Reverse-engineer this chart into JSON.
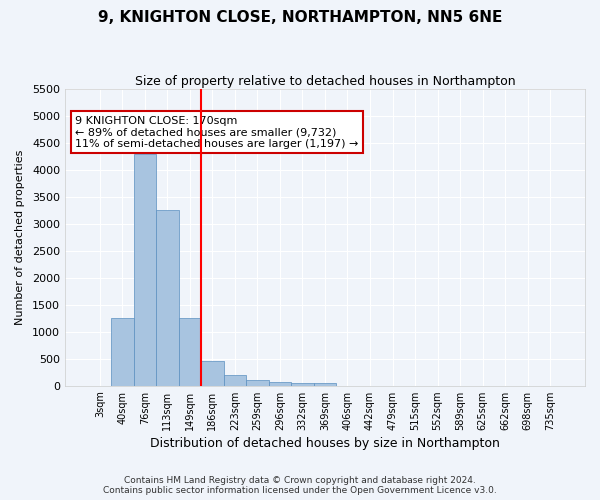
{
  "title": "9, KNIGHTON CLOSE, NORTHAMPTON, NN5 6NE",
  "subtitle": "Size of property relative to detached houses in Northampton",
  "xlabel": "Distribution of detached houses by size in Northampton",
  "ylabel": "Number of detached properties",
  "categories": [
    "3sqm",
    "40sqm",
    "76sqm",
    "113sqm",
    "149sqm",
    "186sqm",
    "223sqm",
    "259sqm",
    "296sqm",
    "332sqm",
    "369sqm",
    "406sqm",
    "442sqm",
    "479sqm",
    "515sqm",
    "552sqm",
    "589sqm",
    "625sqm",
    "662sqm",
    "698sqm",
    "735sqm"
  ],
  "values": [
    0,
    1250,
    4300,
    3250,
    1250,
    450,
    200,
    100,
    75,
    50,
    50,
    0,
    0,
    0,
    0,
    0,
    0,
    0,
    0,
    0,
    0
  ],
  "bar_color": "#a8c4e0",
  "bar_edge_color": "#5a8fc0",
  "red_line_index": 4.5,
  "ylim": [
    0,
    5500
  ],
  "yticks": [
    0,
    500,
    1000,
    1500,
    2000,
    2500,
    3000,
    3500,
    4000,
    4500,
    5000,
    5500
  ],
  "annotation_text": "9 KNIGHTON CLOSE: 170sqm\n← 89% of detached houses are smaller (9,732)\n11% of semi-detached houses are larger (1,197) →",
  "annotation_box_color": "#ffffff",
  "annotation_border_color": "#cc0000",
  "footer_line1": "Contains HM Land Registry data © Crown copyright and database right 2024.",
  "footer_line2": "Contains public sector information licensed under the Open Government Licence v3.0.",
  "background_color": "#f0f4fa",
  "grid_color": "#ffffff"
}
